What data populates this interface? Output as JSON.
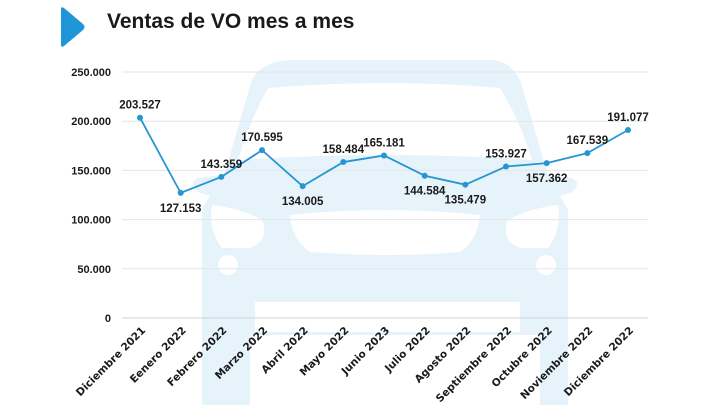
{
  "header": {
    "title": "Ventas de VO mes a mes",
    "accent_color": "#1e96d8",
    "icon": "play-triangle-icon"
  },
  "colors": {
    "line": "#2596d1",
    "grid": "#e3e6e8",
    "watermark": "#e6f3fa"
  },
  "chart_data": {
    "type": "line",
    "title": "Ventas de VO mes a mes",
    "xlabel": "",
    "ylabel": "",
    "ylim": [
      0,
      250000
    ],
    "yticks": [
      0,
      50000,
      100000,
      150000,
      200000,
      250000
    ],
    "ytick_labels": [
      "0",
      "50.000",
      "100.000",
      "150.000",
      "200.000",
      "250.000"
    ],
    "grid": true,
    "categories": [
      "Diciembre 2021",
      "Eenero 2022",
      "Febrero 2022",
      "Marzo 2022",
      "Abril 2022",
      "Mayo 2022",
      "Junio 2023",
      "Julio 2022",
      "Agosto 2022",
      "Septiembre 2022",
      "Octubre 2022",
      "Noviembre 2022",
      "Diciembre 2022"
    ],
    "series": [
      {
        "name": "Ventas de VO",
        "values": [
          203527,
          127153,
          143359,
          170595,
          134005,
          158484,
          165181,
          144584,
          135479,
          153927,
          157362,
          167539,
          191077
        ],
        "labels": [
          "203.527",
          "127.153",
          "143.359",
          "170.595",
          "134.005",
          "158.484",
          "165.181",
          "144.584",
          "135.479",
          "153.927",
          "157.362",
          "167.539",
          "191.077"
        ],
        "label_position": [
          "above",
          "below",
          "above",
          "above",
          "below",
          "above",
          "above",
          "below",
          "below",
          "above",
          "below",
          "above",
          "above"
        ]
      }
    ]
  }
}
